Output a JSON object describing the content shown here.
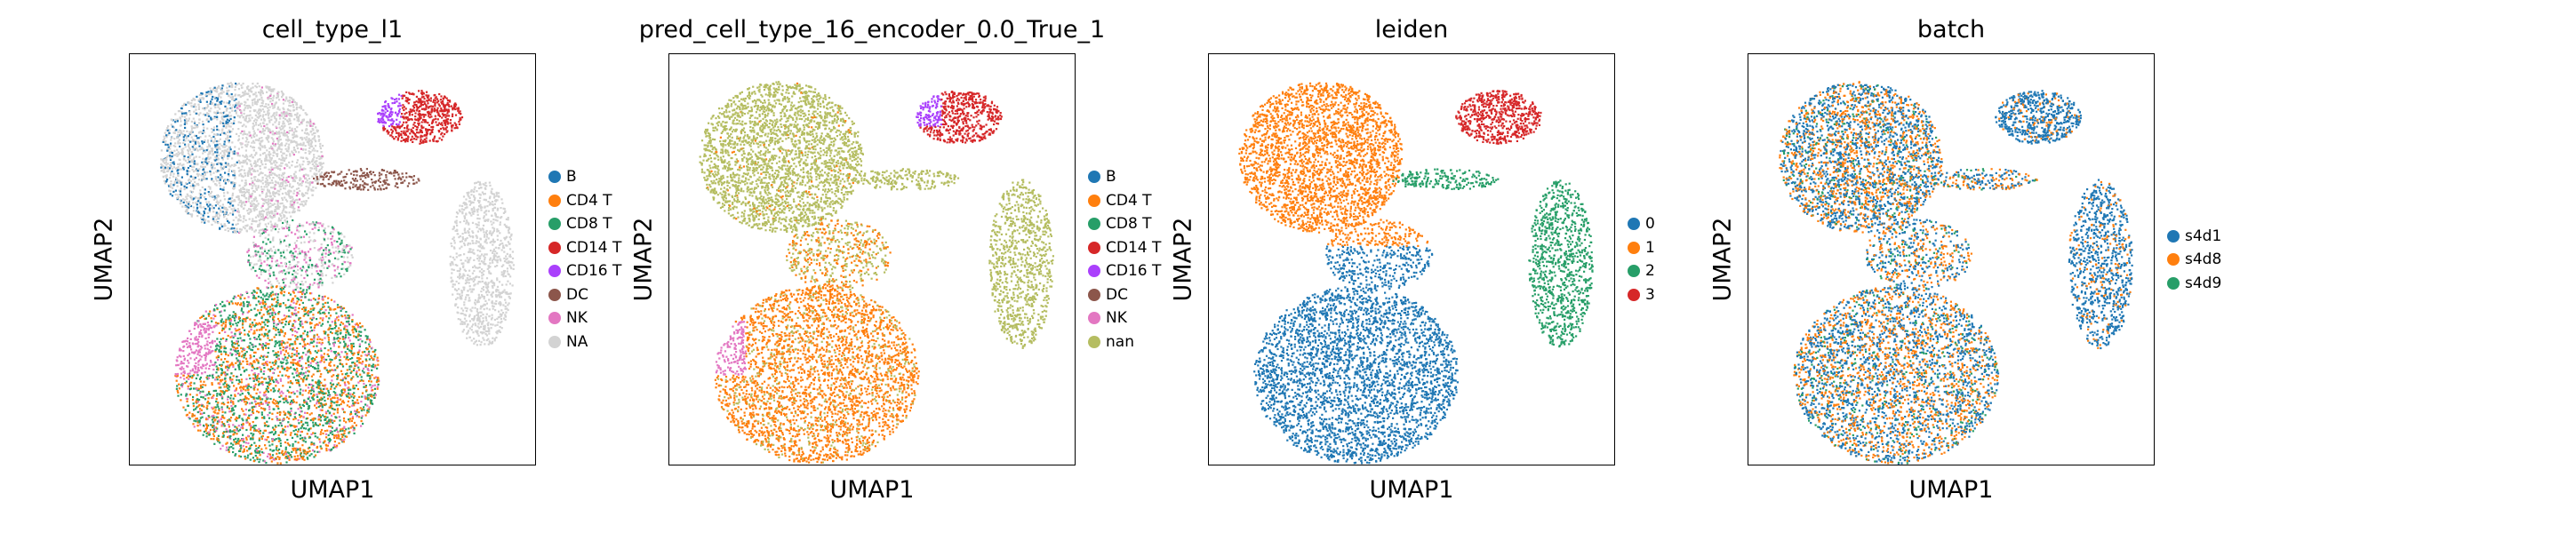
{
  "chart_data": [
    {
      "type": "scatter",
      "title": "cell_type_l1",
      "xlabel": "UMAP1",
      "ylabel": "UMAP2",
      "legend_position": "right",
      "grid": false,
      "series": [
        {
          "name": "B",
          "color": "#1f77b4"
        },
        {
          "name": "CD4 T",
          "color": "#ff7f0e"
        },
        {
          "name": "CD8 T",
          "color": "#279e68"
        },
        {
          "name": "CD14 T",
          "color": "#d62728"
        },
        {
          "name": "CD16 T",
          "color": "#aa40fc"
        },
        {
          "name": "DC",
          "color": "#8c564b"
        },
        {
          "name": "NK",
          "color": "#e377c2"
        },
        {
          "name": "NA",
          "color": "#d3d3d3"
        }
      ]
    },
    {
      "type": "scatter",
      "title": "pred_cell_type_16_encoder_0.0_True_1",
      "xlabel": "UMAP1",
      "ylabel": "UMAP2",
      "legend_position": "right",
      "grid": false,
      "series": [
        {
          "name": "B",
          "color": "#1f77b4"
        },
        {
          "name": "CD4 T",
          "color": "#ff7f0e"
        },
        {
          "name": "CD8 T",
          "color": "#279e68"
        },
        {
          "name": "CD14 T",
          "color": "#d62728"
        },
        {
          "name": "CD16 T",
          "color": "#aa40fc"
        },
        {
          "name": "DC",
          "color": "#8c564b"
        },
        {
          "name": "NK",
          "color": "#e377c2"
        },
        {
          "name": "nan",
          "color": "#b5bd61"
        }
      ]
    },
    {
      "type": "scatter",
      "title": "leiden",
      "xlabel": "UMAP1",
      "ylabel": "UMAP2",
      "legend_position": "right",
      "grid": false,
      "series": [
        {
          "name": "0",
          "color": "#1f77b4"
        },
        {
          "name": "1",
          "color": "#ff7f0e"
        },
        {
          "name": "2",
          "color": "#279e68"
        },
        {
          "name": "3",
          "color": "#d62728"
        }
      ]
    },
    {
      "type": "scatter",
      "title": "batch",
      "xlabel": "UMAP1",
      "ylabel": "UMAP2",
      "legend_position": "right",
      "grid": false,
      "series": [
        {
          "name": "s4d1",
          "color": "#1f77b4"
        },
        {
          "name": "s4d8",
          "color": "#ff7f0e"
        },
        {
          "name": "s4d9",
          "color": "#279e68"
        }
      ]
    }
  ]
}
